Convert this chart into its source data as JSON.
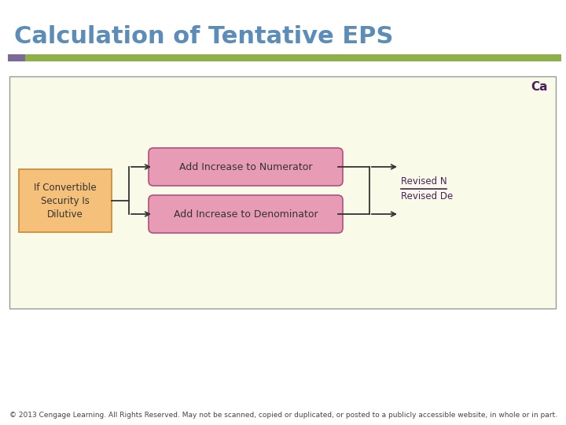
{
  "title": "Calculation of Tentative EPS",
  "title_color": "#5B8DB8",
  "title_fontsize": 22,
  "bg_color": "#FFFFFF",
  "header_bar_purple": "#7B6A96",
  "header_bar_green": "#8DB04A",
  "diagram_bg": "#FAFAE8",
  "diagram_border": "#999999",
  "box1_text": "If Convertible\nSecurity Is\nDilutive",
  "box1_facecolor": "#F5C07A",
  "box1_edgecolor": "#CC8833",
  "box2_text": "Add Increase to Numerator",
  "box2_facecolor": "#E89BB5",
  "box2_edgecolor": "#B05080",
  "box3_text": "Add Increase to Denominator",
  "box3_facecolor": "#E89BB5",
  "box3_edgecolor": "#B05080",
  "result_top_text": "Revised N",
  "result_bot_text": "Revised De",
  "result_color": "#4A2060",
  "arrow_color": "#333333",
  "corner_label": "Ca",
  "corner_label_color": "#4A2060",
  "footer_text": "© 2013 Cengage Learning. All Rights Reserved. May not be scanned, copied or duplicated, or posted to a publicly accessible website, in whole or in part.",
  "footer_color": "#444444",
  "footer_fontsize": 6.5
}
